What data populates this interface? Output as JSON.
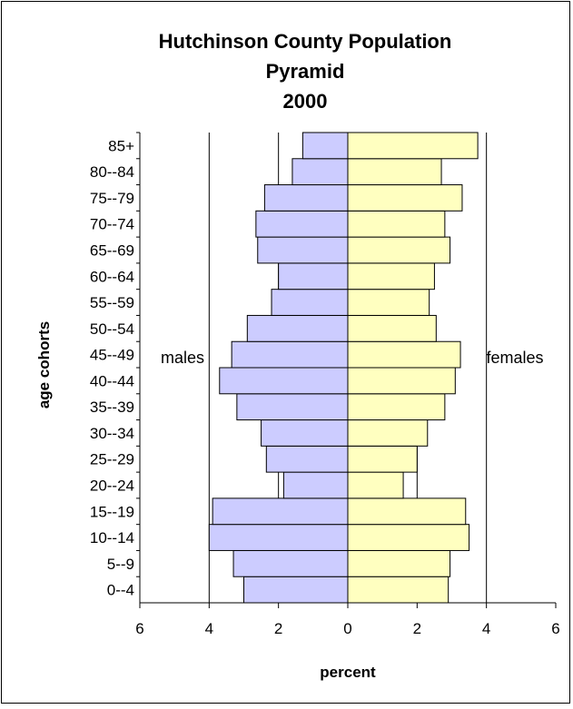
{
  "chart_data": {
    "type": "bar",
    "orientation": "horizontal",
    "subtype": "population-pyramid",
    "title_lines": [
      "Hutchinson County Population",
      "Pyramid",
      "2000"
    ],
    "xlabel": "percent",
    "ylabel": "age cohorts",
    "xlim": [
      -6,
      6
    ],
    "x_ticks": [
      "6",
      "4",
      "2",
      "0",
      "2",
      "4",
      "6"
    ],
    "grid": "vertical",
    "categories": [
      "0--4",
      "5--9",
      "10--14",
      "15--19",
      "20--24",
      "25--29",
      "30--34",
      "35--39",
      "40--44",
      "45--49",
      "50--54",
      "55--59",
      "60--64",
      "65--69",
      "70--74",
      "75--79",
      "80--84",
      "85+"
    ],
    "series": [
      {
        "name": "males",
        "color": "#CCCCFF",
        "values": [
          3.0,
          3.3,
          4.0,
          3.9,
          1.85,
          2.35,
          2.5,
          3.2,
          3.7,
          3.35,
          2.9,
          2.2,
          2.0,
          2.6,
          2.65,
          2.4,
          1.6,
          1.3
        ]
      },
      {
        "name": "females",
        "color": "#FFFFC0",
        "values": [
          2.9,
          2.95,
          3.5,
          3.4,
          1.6,
          2.0,
          2.3,
          2.8,
          3.1,
          3.25,
          2.55,
          2.35,
          2.5,
          2.95,
          2.8,
          3.3,
          2.7,
          3.75
        ]
      }
    ]
  }
}
